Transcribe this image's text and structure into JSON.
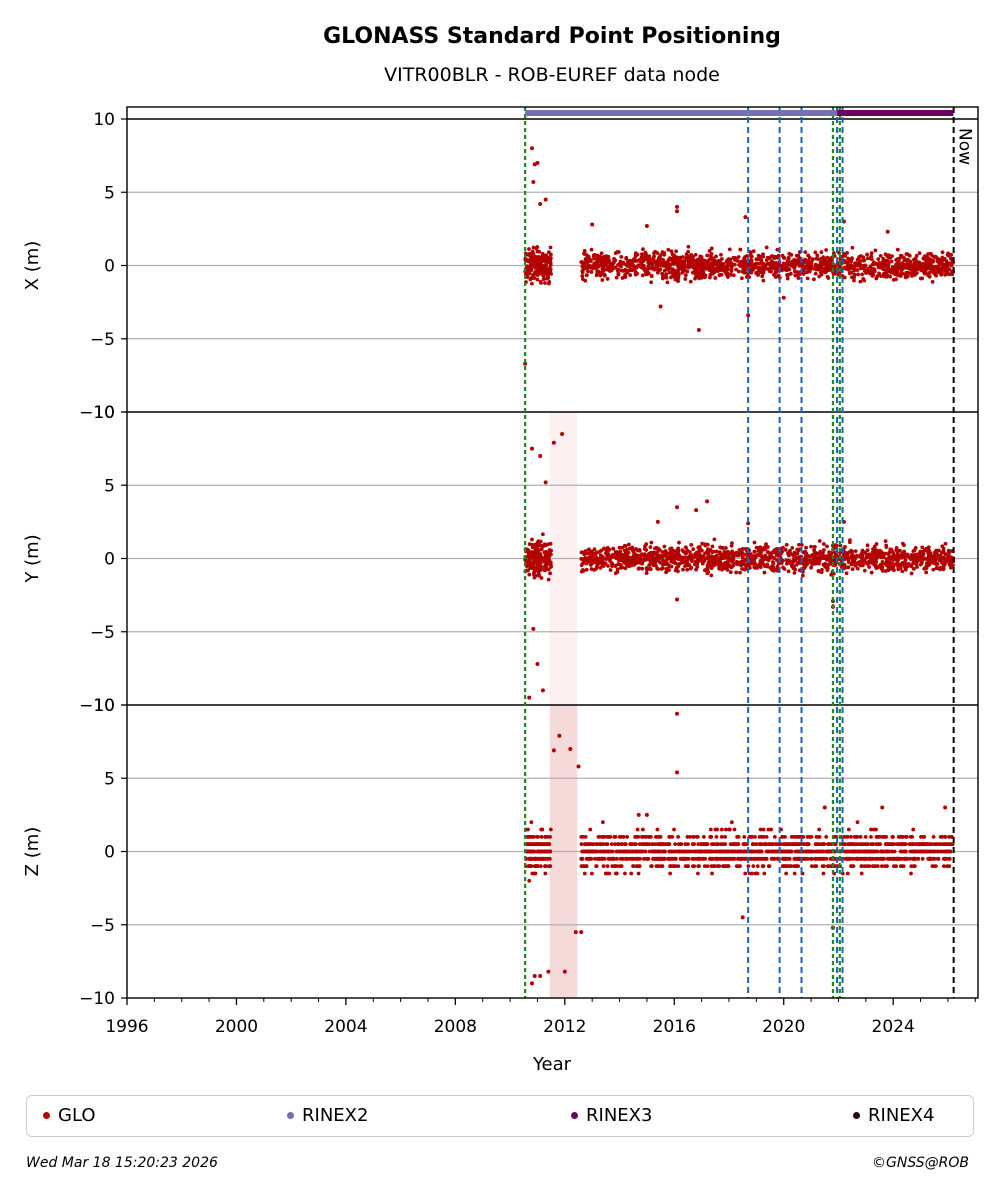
{
  "chart_data": {
    "type": "scatter",
    "title": "GLONASS Standard Point Positioning",
    "subtitle": "VITR00BLR - ROB-EUREF data node",
    "xlabel": "Year",
    "xlim": [
      1996,
      2027.1
    ],
    "xticks": [
      "1996",
      "2000",
      "2004",
      "2008",
      "2012",
      "2016",
      "2020",
      "2024"
    ],
    "now_label": "Now",
    "now_year": 2026.21,
    "panels": [
      {
        "ylabel": "X (m)",
        "ylim": [
          -10,
          10
        ],
        "yticks": [
          "−10",
          "−5",
          "0",
          "5",
          "10"
        ],
        "cluster_1": {
          "x_range": [
            2010.55,
            2011.5
          ],
          "spread": 1.1
        },
        "cluster_2": {
          "x_range": [
            2012.6,
            2026.2
          ],
          "spread": 0.9
        },
        "outliers": [
          {
            "x": 2010.55,
            "y": -6.7
          },
          {
            "x": 2010.8,
            "y": 8.0
          },
          {
            "x": 2010.9,
            "y": 6.9
          },
          {
            "x": 2011.0,
            "y": 7.0
          },
          {
            "x": 2010.85,
            "y": 5.7
          },
          {
            "x": 2011.1,
            "y": 4.2
          },
          {
            "x": 2011.3,
            "y": 4.5
          },
          {
            "x": 2016.1,
            "y": 4.0
          },
          {
            "x": 2016.1,
            "y": 3.7
          },
          {
            "x": 2016.9,
            "y": -4.4
          },
          {
            "x": 2018.7,
            "y": -3.4
          },
          {
            "x": 2018.6,
            "y": 3.3
          },
          {
            "x": 2022.2,
            "y": 3.0
          },
          {
            "x": 2013.0,
            "y": 2.8
          },
          {
            "x": 2015.0,
            "y": 2.7
          },
          {
            "x": 2015.5,
            "y": -2.8
          },
          {
            "x": 2020.0,
            "y": -2.2
          },
          {
            "x": 2023.8,
            "y": 2.3
          }
        ]
      },
      {
        "ylabel": "Y (m)",
        "ylim": [
          -10,
          10
        ],
        "yticks": [
          "−10",
          "−5",
          "0",
          "5",
          "10"
        ],
        "cluster_1": {
          "x_range": [
            2010.55,
            2011.5
          ],
          "spread": 1.2
        },
        "cluster_2": {
          "x_range": [
            2012.6,
            2026.2
          ],
          "spread": 0.9
        },
        "outliers": [
          {
            "x": 2011.9,
            "y": 8.5
          },
          {
            "x": 2011.6,
            "y": 7.9
          },
          {
            "x": 2010.8,
            "y": 7.5
          },
          {
            "x": 2011.1,
            "y": 7.0
          },
          {
            "x": 2010.85,
            "y": -4.8
          },
          {
            "x": 2011.0,
            "y": -7.2
          },
          {
            "x": 2010.7,
            "y": -9.5
          },
          {
            "x": 2011.2,
            "y": -9.0
          },
          {
            "x": 2011.3,
            "y": 5.2
          },
          {
            "x": 2016.1,
            "y": 3.5
          },
          {
            "x": 2017.2,
            "y": 3.9
          },
          {
            "x": 2016.8,
            "y": 3.3
          },
          {
            "x": 2016.1,
            "y": -2.8
          },
          {
            "x": 2018.7,
            "y": 2.4
          },
          {
            "x": 2022.2,
            "y": 2.5
          },
          {
            "x": 2021.8,
            "y": -2.9
          },
          {
            "x": 2021.8,
            "y": -3.3
          },
          {
            "x": 2015.4,
            "y": 2.5
          }
        ]
      },
      {
        "ylabel": "Z (m)",
        "ylim": [
          -10,
          10
        ],
        "yticks": [
          "−10",
          "−5",
          "0",
          "5",
          "10"
        ],
        "quantized": true,
        "cluster_1": {
          "x_range": [
            2010.55,
            2011.5
          ],
          "spread": 1.5
        },
        "cluster_2": {
          "x_range": [
            2012.6,
            2026.2
          ],
          "spread": 1.3
        },
        "outliers": [
          {
            "x": 2011.8,
            "y": 7.9
          },
          {
            "x": 2012.2,
            "y": 7.0
          },
          {
            "x": 2012.5,
            "y": 5.8
          },
          {
            "x": 2011.6,
            "y": 6.9
          },
          {
            "x": 2010.9,
            "y": -8.5
          },
          {
            "x": 2011.1,
            "y": -8.5
          },
          {
            "x": 2010.8,
            "y": -9.0
          },
          {
            "x": 2012.0,
            "y": -8.2
          },
          {
            "x": 2011.4,
            "y": -8.2
          },
          {
            "x": 2012.4,
            "y": -5.5
          },
          {
            "x": 2012.6,
            "y": -5.5
          },
          {
            "x": 2016.1,
            "y": 9.4
          },
          {
            "x": 2016.1,
            "y": 5.4
          },
          {
            "x": 2018.5,
            "y": -4.5
          },
          {
            "x": 2021.8,
            "y": -5.2
          },
          {
            "x": 2023.6,
            "y": 3.0
          },
          {
            "x": 2025.9,
            "y": 3.0
          },
          {
            "x": 2021.5,
            "y": 3.0
          },
          {
            "x": 2014.7,
            "y": 2.5
          },
          {
            "x": 2015.0,
            "y": 2.5
          }
        ]
      }
    ],
    "events": {
      "green_dotted": [
        2010.55,
        2021.8,
        2022.05
      ],
      "blue_dashed": [
        2018.7,
        2019.85,
        2020.65,
        2021.95,
        2022.15
      ],
      "pink_band": [
        2011.45,
        2012.45
      ]
    },
    "rinex2_bar": {
      "from": 2010.55,
      "to": 2021.95
    },
    "rinex3_bar": {
      "from": 2021.95,
      "to": 2026.2
    },
    "colors": {
      "glo": "#b30000",
      "rinex2": "#7570b3",
      "rinex3": "#6a0060",
      "rinex4": "#2b0016",
      "blue_event": "#1565c0",
      "green_event": "#1b8a1b",
      "pink_band": "#f2caca",
      "grid": "#b0b0b0"
    }
  },
  "legend": {
    "items": [
      {
        "label": "GLO",
        "color": "#b30000"
      },
      {
        "label": "RINEX2",
        "color": "#7570b3"
      },
      {
        "label": "RINEX3",
        "color": "#6a0060"
      },
      {
        "label": "RINEX4",
        "color": "#2b0016"
      }
    ]
  },
  "footer": {
    "timestamp": "Wed Mar 18 15:20:23 2026",
    "copyright": "©GNSS@ROB"
  }
}
